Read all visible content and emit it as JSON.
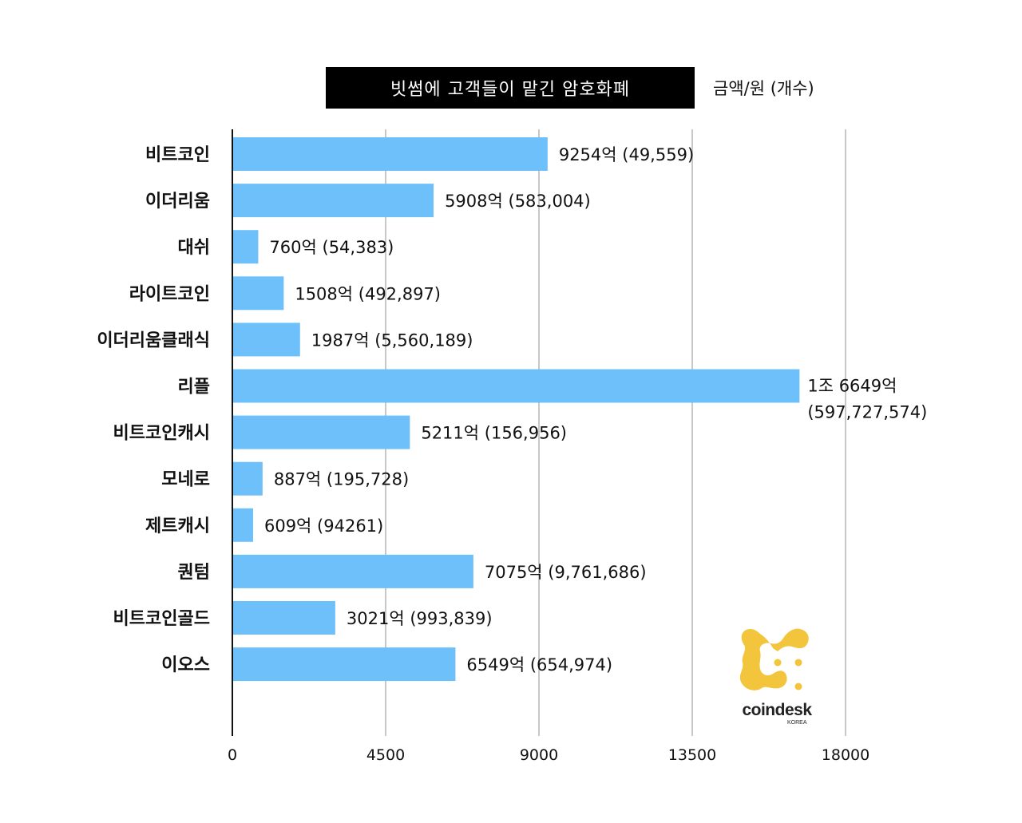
{
  "title": "빗썸에 고객들이 맡긴 암호화폐",
  "unit": "금액/원 (개수)",
  "logo": {
    "name": "coindesk",
    "sub": "KOREA"
  },
  "chart_data": {
    "type": "bar",
    "orientation": "horizontal",
    "categories": [
      "비트코인",
      "이더리움",
      "대쉬",
      "라이트코인",
      "이더리움클래식",
      "리플",
      "비트코인캐시",
      "모네로",
      "제트캐시",
      "퀀텀",
      "비트코인골드",
      "이오스"
    ],
    "values": [
      9254,
      5908,
      760,
      1508,
      1987,
      16649,
      5211,
      887,
      609,
      7075,
      3021,
      6549
    ],
    "labels": [
      [
        "9254억 (49,559)"
      ],
      [
        "5908억 (583,004)"
      ],
      [
        "760억 (54,383)"
      ],
      [
        "1508억 (492,897)"
      ],
      [
        "1987억 (5,560,189)"
      ],
      [
        "1조 6649억",
        "(597,727,574)"
      ],
      [
        "5211억 (156,956)"
      ],
      [
        "887억 (195,728)"
      ],
      [
        "609억 (94261)"
      ],
      [
        "7075억 (9,761,686)"
      ],
      [
        "3021억 (993,839)"
      ],
      [
        "6549억 (654,974)"
      ]
    ],
    "xticks": [
      "0",
      "4500",
      "9000",
      "13500",
      "18000"
    ],
    "xlim": [
      0,
      18000
    ],
    "grid": "vertical",
    "bar_color": "#6ec0fa"
  }
}
